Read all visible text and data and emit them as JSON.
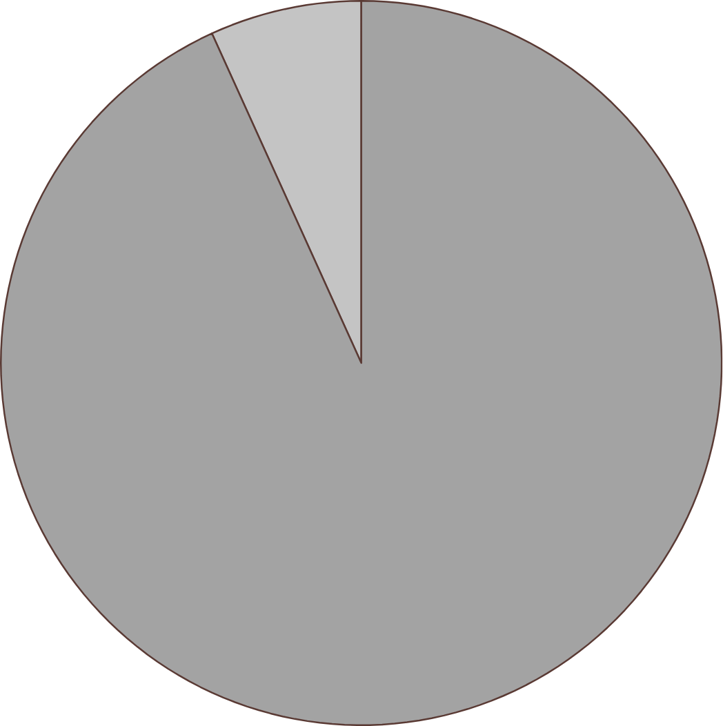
{
  "chart_data": {
    "type": "pie",
    "categories": [
      null,
      null
    ],
    "values": [
      6.8,
      93.2
    ],
    "colors": [
      "#c4c4c4",
      "#a3a3a3"
    ]
  }
}
